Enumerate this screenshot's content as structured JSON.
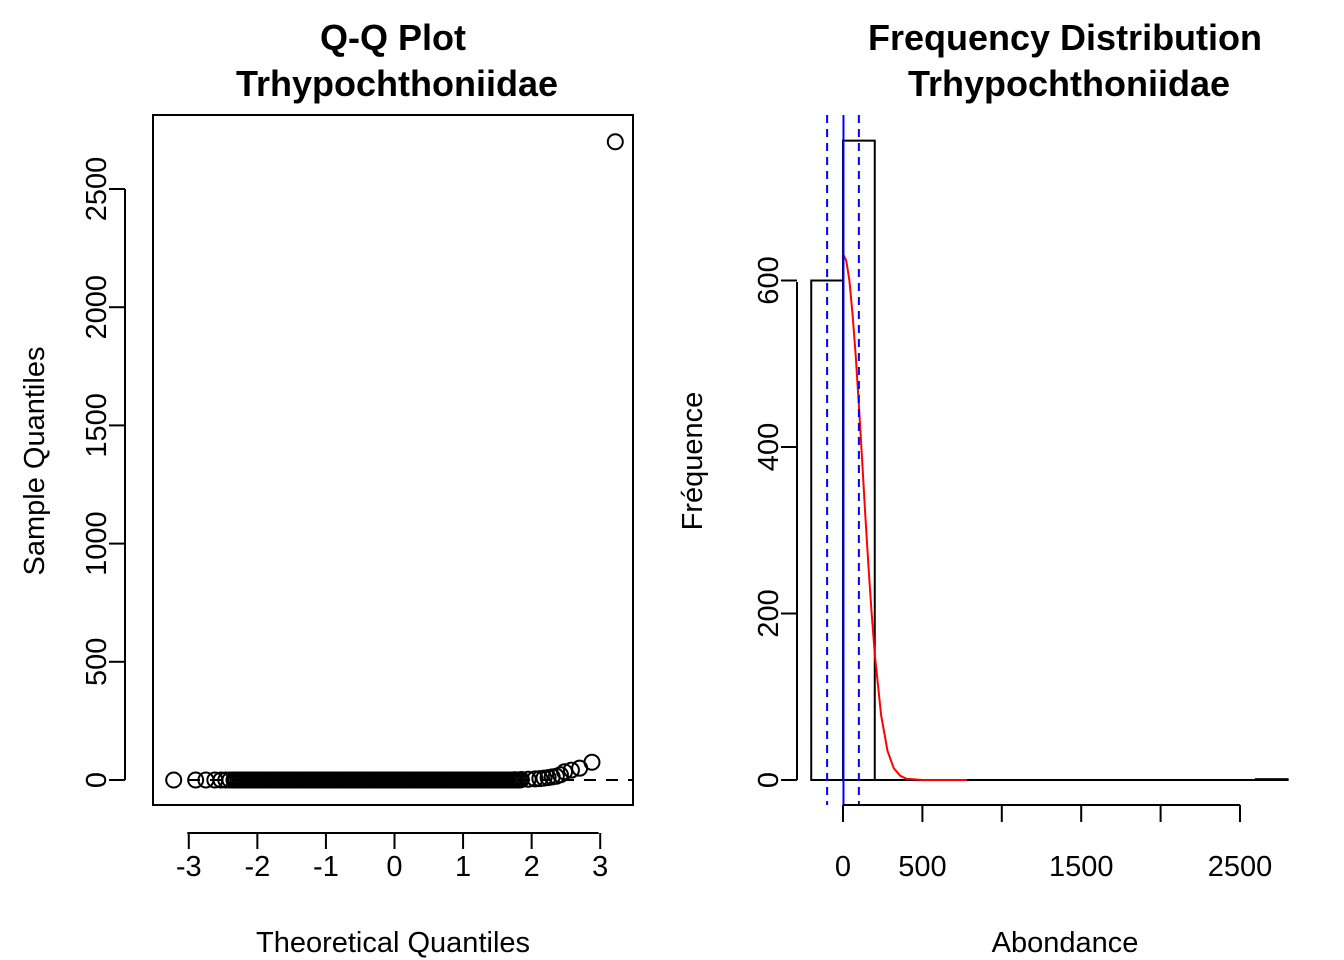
{
  "colors": {
    "foreground": "#000000",
    "fit_curve": "#ff0000",
    "mean_lines": "#0000ff"
  },
  "chart_data": [
    {
      "type": "scatter",
      "title": "Q-Q Plot",
      "subtitle": "Trhypochthoniidae",
      "xlabel": "Theoretical Quantiles",
      "ylabel": "Sample Quantiles",
      "xlim": [
        -3.5,
        3.5
      ],
      "ylim": [
        -110,
        2800
      ],
      "xticks": [
        -3,
        -2,
        -1,
        0,
        1,
        2,
        3
      ],
      "yticks": [
        0,
        500,
        1000,
        1500,
        2000,
        2500
      ],
      "marker": "open-circle",
      "points": {
        "x": [
          -3.22,
          -2.9,
          -2.75,
          -2.62,
          -2.53,
          -2.46,
          -2.4,
          -2.34,
          -2.25,
          -2.14,
          -2.0,
          -1.85,
          -1.7,
          -1.55,
          -1.4,
          -1.25,
          -1.1,
          -0.95,
          -0.8,
          -0.65,
          -0.5,
          -0.35,
          -0.2,
          -0.05,
          0.1,
          0.25,
          0.4,
          0.55,
          0.7,
          0.85,
          1.0,
          1.15,
          1.3,
          1.45,
          1.6,
          1.75,
          1.85,
          1.95,
          2.05,
          2.12,
          2.18,
          2.24,
          2.3,
          2.36,
          2.42,
          2.48,
          2.58,
          2.7,
          2.88,
          3.22
        ],
        "y": [
          0,
          0,
          0,
          0,
          0,
          0,
          0,
          0,
          0,
          0,
          0,
          0,
          0,
          0,
          0,
          0,
          0,
          0,
          0,
          0,
          0,
          0,
          0,
          0,
          0,
          0,
          0,
          0,
          0,
          0,
          0,
          0,
          0,
          0,
          0,
          1,
          2,
          3,
          5,
          6,
          8,
          10,
          13,
          16,
          22,
          35,
          42,
          50,
          75,
          2700
        ]
      },
      "reference_line": {
        "style": "dashed",
        "x": [
          -3.5,
          3.5
        ],
        "y": [
          0,
          0
        ]
      }
    },
    {
      "type": "bar",
      "title": "Frequency Distribution",
      "subtitle": "Trhypochthoniidae",
      "xlabel": "Abondance",
      "ylabel": "Fréquence",
      "xlim": [
        -50,
        2800
      ],
      "ylim": [
        -30,
        770
      ],
      "xticks": [
        0,
        500,
        1000,
        1500,
        2000,
        2500
      ],
      "xtick_labels": [
        "0",
        "500",
        "",
        "1500",
        "",
        "2500"
      ],
      "yticks": [
        0,
        200,
        400,
        600
      ],
      "bins": [
        {
          "start": -200,
          "end": 0,
          "count": 600
        },
        {
          "start": 0,
          "end": 200,
          "count": 768
        },
        {
          "start": 200,
          "end": 2600,
          "count": 0
        },
        {
          "start": 2600,
          "end": 2800,
          "count": 1
        }
      ],
      "fit_curve": {
        "color": "red",
        "x": [
          0,
          20,
          40,
          60,
          80,
          100,
          120,
          140,
          160,
          180,
          200,
          240,
          280,
          320,
          360,
          400,
          500,
          600,
          700,
          780
        ],
        "y": [
          632,
          624,
          600,
          560,
          510,
          450,
          385,
          320,
          258,
          201,
          151,
          78,
          35,
          14,
          5,
          1.5,
          0,
          0,
          0,
          0
        ]
      },
      "vertical_lines": [
        {
          "x": 3,
          "style": "solid",
          "color": "blue"
        },
        {
          "x": -100,
          "style": "dashed",
          "color": "blue"
        },
        {
          "x": 100,
          "style": "dashed",
          "color": "blue"
        }
      ]
    }
  ]
}
